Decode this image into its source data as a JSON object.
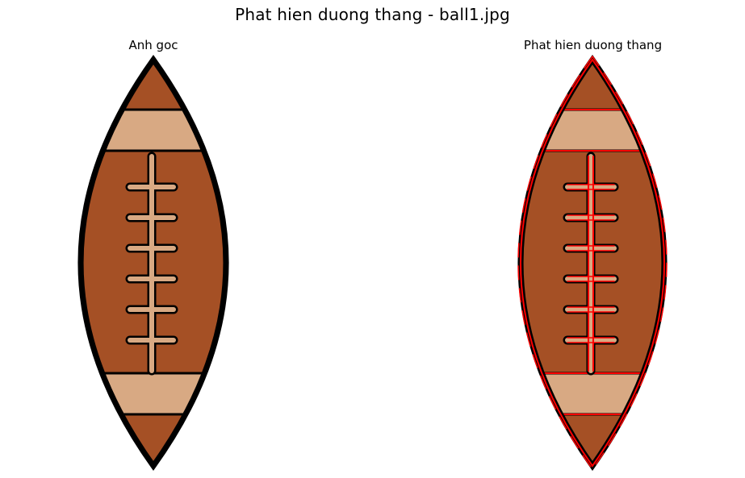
{
  "figure": {
    "title": "Phat hien duong thang - ball1.jpg"
  },
  "panels": [
    {
      "title": "Anh goc"
    },
    {
      "title": "Phat hien duong thang"
    }
  ],
  "colors": {
    "ball_leather": "#a55025",
    "ball_stripe": "#d8a983",
    "outline": "#000000",
    "detected_line": "#ff0000"
  },
  "icons": {
    "image_content": "football-icon"
  }
}
